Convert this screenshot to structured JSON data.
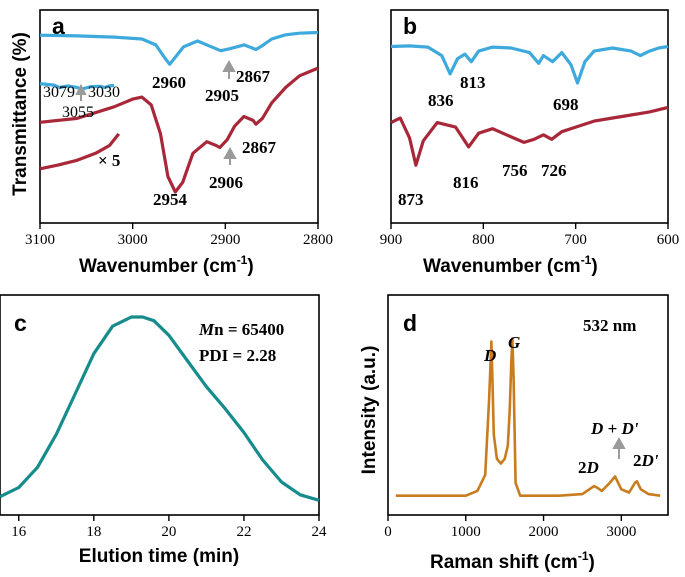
{
  "colors": {
    "blue": "#3da9dc",
    "red": "#a8283a",
    "teal": "#168c8c",
    "orange": "#c97c1e",
    "arrow": "#9a9a9a"
  },
  "chart_data": [
    {
      "panel": "a",
      "type": "line",
      "xlabel": "Wavenumber",
      "xunit": "(cm",
      "xunit_exp": "-1",
      "xunit_close": ")",
      "ylabel": "Transmittance (%)",
      "xlim": [
        3100,
        2800
      ],
      "x_ticks": [
        "3100",
        "3000",
        "2900",
        "2800"
      ],
      "series": [
        {
          "name": "blue",
          "color": "#3da9dc",
          "x": [
            3100,
            3060,
            3020,
            2990,
            2975,
            2965,
            2960,
            2955,
            2945,
            2930,
            2915,
            2905,
            2895,
            2880,
            2872,
            2867,
            2860,
            2850,
            2835,
            2820,
            2800
          ],
          "y": [
            88.5,
            88.3,
            88.0,
            87.5,
            86.0,
            82.5,
            81.0,
            82.5,
            85.5,
            87.0,
            85.5,
            84.5,
            85.0,
            86.0,
            85.3,
            84.8,
            85.8,
            87.5,
            88.6,
            89.0,
            89.2
          ]
        },
        {
          "name": "red",
          "color": "#a8283a",
          "x": [
            3100,
            3060,
            3020,
            3000,
            2990,
            2980,
            2970,
            2962,
            2954,
            2946,
            2935,
            2920,
            2910,
            2906,
            2898,
            2890,
            2880,
            2870,
            2867,
            2860,
            2850,
            2835,
            2820,
            2800
          ],
          "y": [
            66.0,
            67.0,
            70.0,
            72.0,
            72.5,
            70.5,
            63.0,
            52.0,
            48.0,
            50.5,
            58.0,
            61.0,
            60.0,
            59.5,
            61.5,
            65.0,
            67.5,
            66.5,
            65.5,
            67.0,
            71.0,
            75.0,
            78.0,
            80.0
          ]
        },
        {
          "name": "blue-inset",
          "color": "#3da9dc",
          "x": [
            3100,
            3085,
            3079,
            3070,
            3060,
            3055,
            3045,
            3035,
            3030,
            3025,
            3020
          ],
          "y": [
            76.0,
            75.6,
            75.0,
            75.4,
            75.0,
            74.6,
            75.2,
            75.3,
            75.0,
            75.4,
            75.5
          ]
        },
        {
          "name": "red-inset",
          "color": "#a8283a",
          "x": [
            3100,
            3080,
            3060,
            3040,
            3025,
            3015
          ],
          "y": [
            54.0,
            55.0,
            56.2,
            58.0,
            60.0,
            63.0
          ]
        }
      ],
      "annotations": [
        "2960",
        "2905",
        "2867",
        "3079",
        "3055",
        "3030",
        "2954",
        "2906",
        "2867",
        "× 5"
      ]
    },
    {
      "panel": "b",
      "type": "line",
      "xlabel": "Wavenumber",
      "xunit": "(cm",
      "xunit_exp": "-1",
      "xunit_close": ")",
      "xlim": [
        900,
        600
      ],
      "x_ticks": [
        "900",
        "800",
        "700",
        "600"
      ],
      "series": [
        {
          "name": "blue",
          "color": "#3da9dc",
          "x": [
            900,
            880,
            860,
            845,
            836,
            828,
            820,
            813,
            805,
            790,
            770,
            750,
            740,
            735,
            725,
            715,
            705,
            698,
            690,
            680,
            660,
            640,
            630,
            620,
            610,
            600
          ],
          "y": [
            88.0,
            88.2,
            87.8,
            85.0,
            79.0,
            84.0,
            85.5,
            83.0,
            86.5,
            87.8,
            87.5,
            86.0,
            82.5,
            85.0,
            83.0,
            86.0,
            82.0,
            76.0,
            83.0,
            86.5,
            87.5,
            86.5,
            85.0,
            86.5,
            87.5,
            88.0
          ]
        },
        {
          "name": "red",
          "color": "#a8283a",
          "x": [
            900,
            890,
            880,
            873,
            865,
            850,
            830,
            816,
            805,
            790,
            775,
            756,
            745,
            735,
            726,
            715,
            700,
            680,
            660,
            640,
            620,
            600
          ],
          "y": [
            63.0,
            64.5,
            58.0,
            49.0,
            57.0,
            63.0,
            61.5,
            55.0,
            59.5,
            61.0,
            59.0,
            56.5,
            57.5,
            59.0,
            57.5,
            60.0,
            61.5,
            63.5,
            64.5,
            65.5,
            66.5,
            68.0
          ]
        }
      ],
      "annotations": [
        "836",
        "813",
        "698",
        "873",
        "816",
        "756",
        "726"
      ]
    },
    {
      "panel": "c",
      "type": "line",
      "xlabel": "Elution time (min)",
      "xlim": [
        15.5,
        24
      ],
      "x_ticks": [
        "16",
        "18",
        "20",
        "22",
        "24"
      ],
      "series": [
        {
          "name": "GPC trace",
          "color": "#168c8c",
          "x": [
            15.5,
            16.0,
            16.5,
            17.0,
            17.5,
            18.0,
            18.5,
            19.0,
            19.3,
            19.6,
            20.0,
            20.5,
            21.0,
            21.5,
            22.0,
            22.5,
            23.0,
            23.5,
            24.0
          ],
          "y": [
            0.02,
            0.07,
            0.18,
            0.36,
            0.58,
            0.8,
            0.95,
            1.0,
            1.0,
            0.98,
            0.9,
            0.76,
            0.62,
            0.5,
            0.37,
            0.22,
            0.1,
            0.03,
            0.0
          ]
        }
      ],
      "annotations": {
        "mn_italic": "M",
        "mn_rest": "n = 65400",
        "pdi": "PDI = 2.28"
      }
    },
    {
      "panel": "d",
      "type": "line",
      "xlabel": "Raman shift",
      "xunit": "(cm",
      "xunit_exp": "-1",
      "xunit_close": ")",
      "ylabel": "Intensity (a.u.)",
      "xlim": [
        0,
        3600
      ],
      "x_ticks": [
        "0",
        "1000",
        "2000",
        "3000"
      ],
      "series": [
        {
          "name": "Raman",
          "color": "#c97c1e",
          "x": [
            100,
            400,
            700,
            1000,
            1150,
            1250,
            1300,
            1330,
            1345,
            1360,
            1400,
            1450,
            1500,
            1540,
            1565,
            1585,
            1600,
            1615,
            1640,
            1700,
            1900,
            2200,
            2500,
            2650,
            2690,
            2750,
            2850,
            2920,
            2950,
            3000,
            3100,
            3175,
            3200,
            3250,
            3350,
            3500
          ],
          "y": [
            0.02,
            0.02,
            0.02,
            0.02,
            0.05,
            0.15,
            0.62,
            0.98,
            0.7,
            0.4,
            0.25,
            0.22,
            0.25,
            0.33,
            0.55,
            0.85,
            1.0,
            0.75,
            0.1,
            0.02,
            0.02,
            0.02,
            0.03,
            0.08,
            0.07,
            0.05,
            0.1,
            0.14,
            0.11,
            0.06,
            0.04,
            0.1,
            0.11,
            0.06,
            0.03,
            0.02
          ]
        }
      ],
      "annotations": {
        "d": "D",
        "g": "G",
        "laser": "532 nm",
        "ddp": "D + D'",
        "twod_num": "2",
        "twod_it": "D",
        "twodp_num": "2",
        "twodp_it": "D'"
      }
    }
  ],
  "panels": {
    "a": {
      "label": "a"
    },
    "b": {
      "label": "b"
    },
    "c": {
      "label": "c"
    },
    "d": {
      "label": "d"
    }
  }
}
